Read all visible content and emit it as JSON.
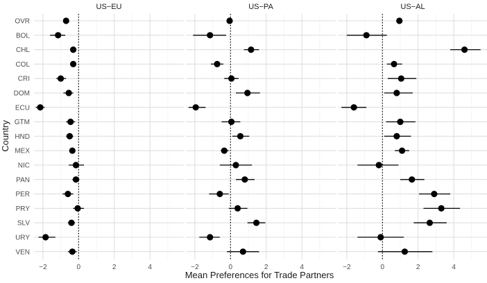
{
  "chart_data": {
    "type": "scatter",
    "subtype": "dot-whisker, faceted",
    "xlabel": "Mean Preferences for Trade Partners",
    "ylabel": "Country",
    "x_ticks": [
      -2,
      0,
      2,
      4
    ],
    "xlim": [
      -2.5,
      5.9
    ],
    "reference_line": {
      "x": 0,
      "style": "dotted"
    },
    "grid": true,
    "categories": [
      "OVR",
      "BOL",
      "CHL",
      "COL",
      "CRI",
      "DOM",
      "ECU",
      "GTM",
      "HND",
      "MEX",
      "NIC",
      "PAN",
      "PER",
      "PRY",
      "SLV",
      "URY",
      "VEN"
    ],
    "panels": [
      {
        "title": "US−EU",
        "points": [
          {
            "country": "OVR",
            "value": -0.7,
            "low": -0.8,
            "high": -0.6
          },
          {
            "country": "BOL",
            "value": -1.15,
            "low": -1.6,
            "high": -0.75
          },
          {
            "country": "CHL",
            "value": -0.3,
            "low": -0.4,
            "high": -0.2
          },
          {
            "country": "COL",
            "value": -0.3,
            "low": -0.4,
            "high": -0.2
          },
          {
            "country": "CRI",
            "value": -1.0,
            "low": -1.25,
            "high": -0.7
          },
          {
            "country": "DOM",
            "value": -0.55,
            "low": -0.85,
            "high": -0.3
          },
          {
            "country": "ECU",
            "value": -2.15,
            "low": -2.4,
            "high": -1.9
          },
          {
            "country": "GTM",
            "value": -0.45,
            "low": -0.7,
            "high": -0.2
          },
          {
            "country": "HND",
            "value": -0.5,
            "low": -0.7,
            "high": -0.3
          },
          {
            "country": "MEX",
            "value": -0.35,
            "low": -0.5,
            "high": -0.2
          },
          {
            "country": "NIC",
            "value": -0.15,
            "low": -0.55,
            "high": 0.3
          },
          {
            "country": "PAN",
            "value": -0.15,
            "low": -0.35,
            "high": 0.05
          },
          {
            "country": "PER",
            "value": -0.6,
            "low": -0.9,
            "high": -0.3
          },
          {
            "country": "PRY",
            "value": -0.05,
            "low": -0.3,
            "high": 0.3
          },
          {
            "country": "SLV",
            "value": -0.4,
            "low": -0.6,
            "high": -0.2
          },
          {
            "country": "URY",
            "value": -1.85,
            "low": -2.25,
            "high": -1.3
          },
          {
            "country": "VEN",
            "value": -0.35,
            "low": -0.6,
            "high": -0.1
          }
        ]
      },
      {
        "title": "US−PA",
        "points": [
          {
            "country": "OVR",
            "value": -0.05,
            "low": -0.15,
            "high": 0.05
          },
          {
            "country": "BOL",
            "value": -1.15,
            "low": -2.1,
            "high": -0.25
          },
          {
            "country": "CHL",
            "value": 1.15,
            "low": 0.75,
            "high": 1.6
          },
          {
            "country": "COL",
            "value": -0.75,
            "low": -1.1,
            "high": -0.4
          },
          {
            "country": "CRI",
            "value": 0.05,
            "low": -0.35,
            "high": 0.45
          },
          {
            "country": "DOM",
            "value": 0.95,
            "low": 0.3,
            "high": 1.65
          },
          {
            "country": "ECU",
            "value": -1.95,
            "low": -2.35,
            "high": -1.4
          },
          {
            "country": "GTM",
            "value": 0.05,
            "low": -0.5,
            "high": 0.55
          },
          {
            "country": "HND",
            "value": 0.55,
            "low": 0.1,
            "high": 1.05
          },
          {
            "country": "MEX",
            "value": -0.35,
            "low": -0.55,
            "high": -0.1
          },
          {
            "country": "NIC",
            "value": 0.3,
            "low": -0.6,
            "high": 1.2
          },
          {
            "country": "PAN",
            "value": 0.8,
            "low": 0.3,
            "high": 1.35
          },
          {
            "country": "PER",
            "value": -0.6,
            "low": -1.2,
            "high": -0.1
          },
          {
            "country": "PRY",
            "value": 0.4,
            "low": -0.1,
            "high": 0.95
          },
          {
            "country": "SLV",
            "value": 1.45,
            "low": 0.95,
            "high": 1.95
          },
          {
            "country": "URY",
            "value": -1.15,
            "low": -1.75,
            "high": -0.6
          },
          {
            "country": "VEN",
            "value": 0.7,
            "low": -0.2,
            "high": 1.6
          }
        ]
      },
      {
        "title": "US−AL",
        "points": [
          {
            "country": "OVR",
            "value": 0.95,
            "low": 0.85,
            "high": 1.05
          },
          {
            "country": "BOL",
            "value": -0.9,
            "low": -2.0,
            "high": 0.25
          },
          {
            "country": "CHL",
            "value": 4.6,
            "low": 3.8,
            "high": 5.5
          },
          {
            "country": "COL",
            "value": 0.65,
            "low": 0.25,
            "high": 1.1
          },
          {
            "country": "CRI",
            "value": 1.05,
            "low": 0.3,
            "high": 1.9
          },
          {
            "country": "DOM",
            "value": 0.8,
            "low": 0.1,
            "high": 1.7
          },
          {
            "country": "ECU",
            "value": -1.6,
            "low": -2.3,
            "high": -0.9
          },
          {
            "country": "GTM",
            "value": 1.0,
            "low": 0.2,
            "high": 1.85
          },
          {
            "country": "HND",
            "value": 0.8,
            "low": 0.1,
            "high": 1.6
          },
          {
            "country": "MEX",
            "value": 1.1,
            "low": 0.7,
            "high": 1.5
          },
          {
            "country": "NIC",
            "value": -0.2,
            "low": -1.4,
            "high": 0.9
          },
          {
            "country": "PAN",
            "value": 1.65,
            "low": 1.0,
            "high": 2.35
          },
          {
            "country": "PER",
            "value": 2.9,
            "low": 2.05,
            "high": 3.8
          },
          {
            "country": "PRY",
            "value": 3.3,
            "low": 2.3,
            "high": 4.35
          },
          {
            "country": "SLV",
            "value": 2.65,
            "low": 1.75,
            "high": 3.6
          },
          {
            "country": "URY",
            "value": -0.1,
            "low": -1.4,
            "high": 1.2
          },
          {
            "country": "VEN",
            "value": 1.25,
            "low": -0.25,
            "high": 2.8
          }
        ]
      }
    ]
  }
}
